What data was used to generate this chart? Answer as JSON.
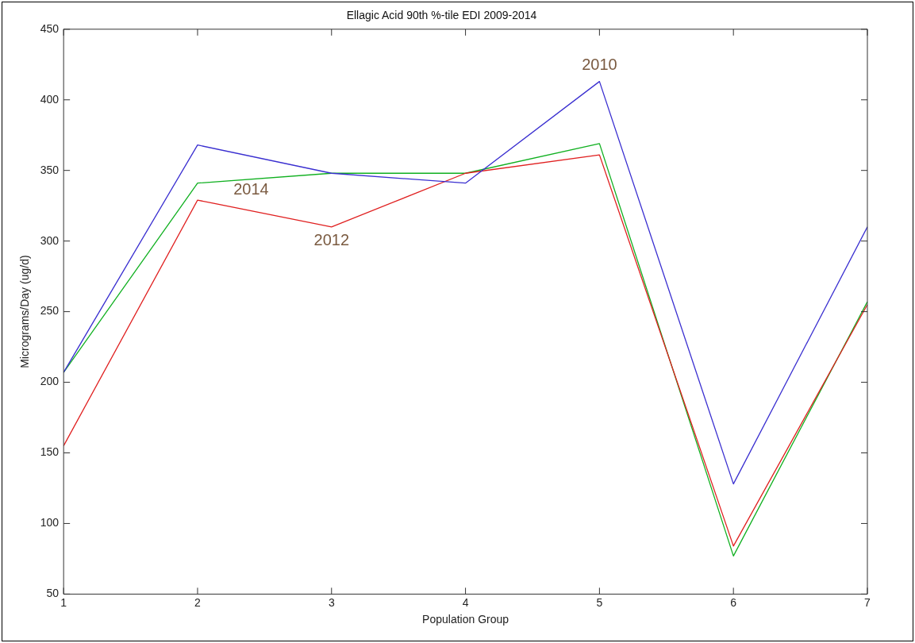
{
  "chart_data": {
    "type": "line",
    "title": "Ellagic Acid 90th %-tile EDI 2009-2014",
    "xlabel": "Population Group",
    "ylabel": "Micrograms/Day (ug/d)",
    "x": [
      1,
      2,
      3,
      4,
      5,
      6,
      7
    ],
    "series": [
      {
        "name": "2010",
        "color": "#3a2fd0",
        "values": [
          207,
          368,
          348,
          341,
          413,
          128,
          310
        ]
      },
      {
        "name": "2012",
        "color": "#e02020",
        "values": [
          155,
          329,
          310,
          348,
          361,
          84,
          255
        ]
      },
      {
        "name": "2014",
        "color": "#10b020",
        "values": [
          207,
          341,
          348,
          348,
          369,
          77,
          257
        ]
      }
    ],
    "xlim": [
      1,
      7
    ],
    "xticks": [
      1,
      2,
      3,
      4,
      5,
      6,
      7
    ],
    "ylim": [
      50,
      450
    ],
    "yticks": [
      50,
      100,
      150,
      200,
      250,
      300,
      350,
      400,
      450
    ],
    "grid": false,
    "legend": false,
    "marker": "none",
    "line_style": "solid"
  }
}
